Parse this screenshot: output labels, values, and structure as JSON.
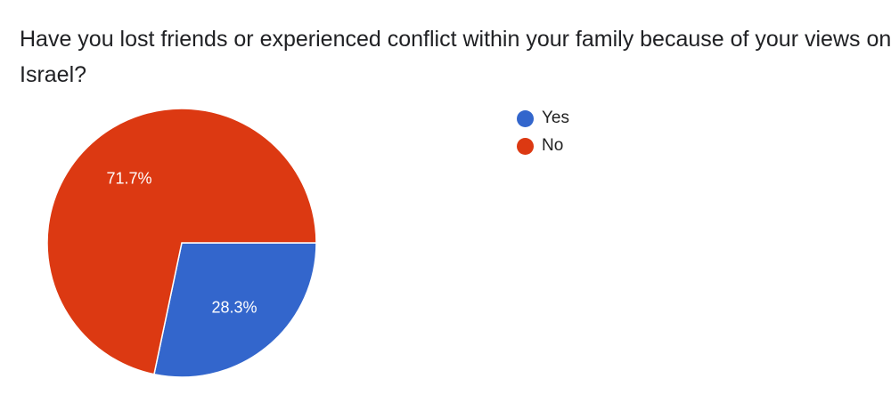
{
  "chart_data": {
    "type": "pie",
    "title": "Have you lost friends or experienced conflict within your family because of your views on Israel?",
    "slices": [
      {
        "label": "Yes",
        "value": 28.3,
        "display": "28.3%",
        "color": "#3366cc"
      },
      {
        "label": "No",
        "value": 71.7,
        "display": "71.7%",
        "color": "#dc3912"
      }
    ],
    "legend_position": "right"
  }
}
